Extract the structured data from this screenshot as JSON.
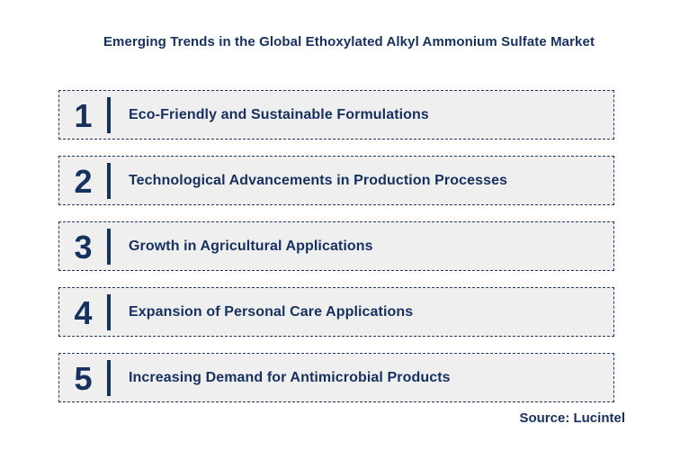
{
  "title": "Emerging Trends in the Global Ethoxylated Alkyl Ammonium Sulfate Market",
  "trends": {
    "items": [
      {
        "number": "1",
        "label": "Eco-Friendly and Sustainable Formulations"
      },
      {
        "number": "2",
        "label": "Technological Advancements in Production Processes"
      },
      {
        "number": "3",
        "label": "Growth in Agricultural Applications"
      },
      {
        "number": "4",
        "label": "Expansion of Personal Care Applications"
      },
      {
        "number": "5",
        "label": "Increasing Demand for Antimicrobial Products"
      }
    ]
  },
  "footer": {
    "source_label": "Source: Lucintel"
  },
  "colors": {
    "accent_navy": "#16305F",
    "border_navy": "#1F3864",
    "box_background": "#EFEFEF",
    "page_background": "#FFFFFF"
  }
}
